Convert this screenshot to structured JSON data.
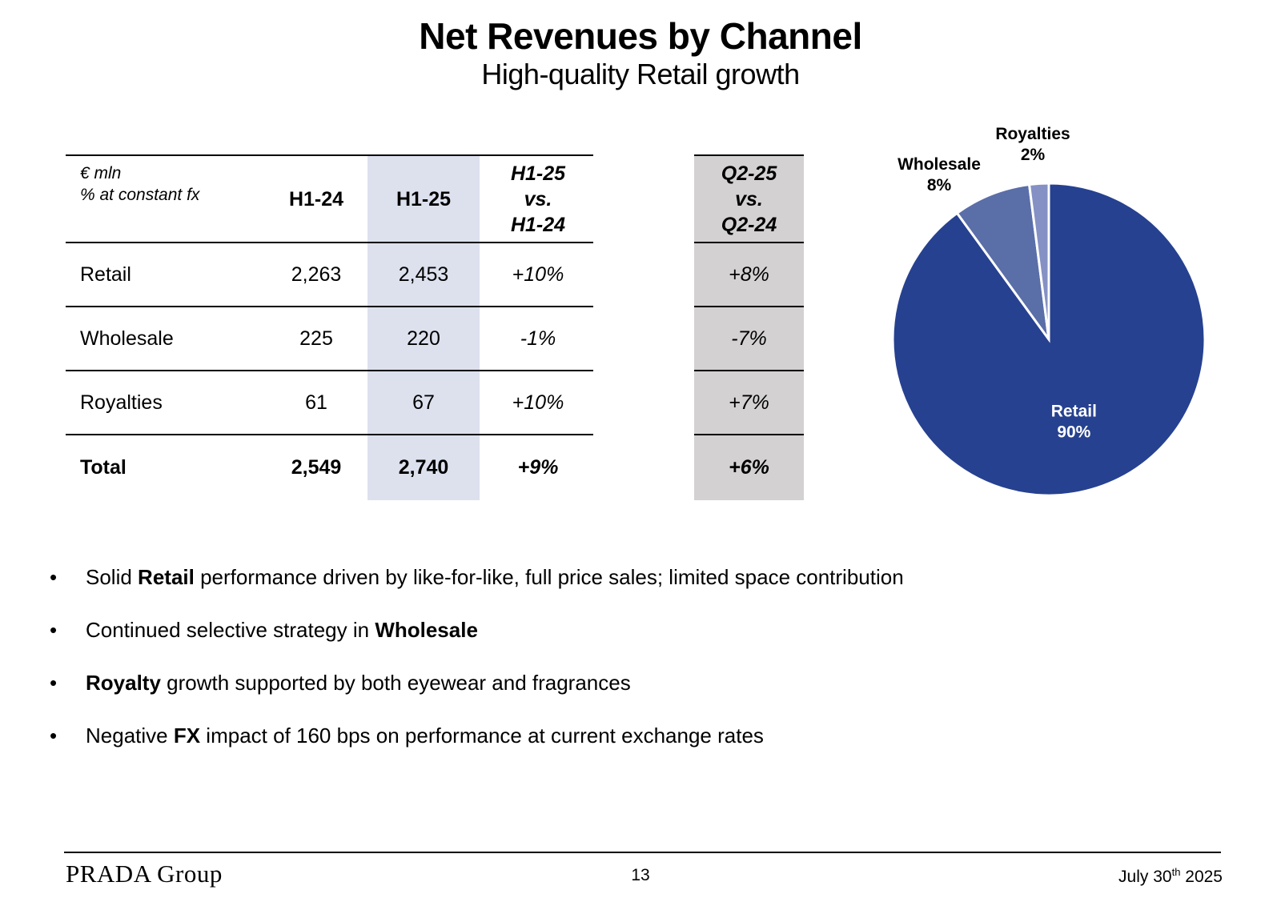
{
  "header": {
    "title": "Net Revenues by Channel",
    "subtitle": "High-quality Retail growth"
  },
  "table": {
    "units_line1": "€ mln",
    "units_line2": "% at constant fx",
    "col_h124": "H1-24",
    "col_h125": "H1-25",
    "col_change": [
      "H1-25",
      "vs.",
      "H1-24"
    ],
    "col_q2": [
      "Q2-25",
      "vs.",
      "Q2-24"
    ],
    "rows": [
      {
        "label": "Retail",
        "h124": "2,263",
        "h125": "2,453",
        "change": "+10%",
        "q2": "+8%"
      },
      {
        "label": "Wholesale",
        "h124": "225",
        "h125": "220",
        "change": "-1%",
        "q2": "-7%"
      },
      {
        "label": "Royalties",
        "h124": "61",
        "h125": "67",
        "change": "+10%",
        "q2": "+7%"
      },
      {
        "label": "Total",
        "h124": "2,549",
        "h125": "2,740",
        "change": "+9%",
        "q2": "+6%"
      }
    ]
  },
  "chart_data": {
    "type": "pie",
    "title": "",
    "slices": [
      {
        "label": "Retail",
        "value": 90,
        "display": "90%",
        "color": "#26418f"
      },
      {
        "label": "Wholesale",
        "value": 8,
        "display": "8%",
        "color": "#5a6ea8"
      },
      {
        "label": "Royalties",
        "value": 2,
        "display": "2%",
        "color": "#8591c4"
      }
    ]
  },
  "bullets": [
    {
      "pre": "Solid ",
      "bold": "Retail",
      "post": " performance driven by like-for-like, full price sales; limited space contribution"
    },
    {
      "pre": "Continued selective strategy in ",
      "bold": "Wholesale",
      "post": ""
    },
    {
      "pre": "",
      "bold": "Royalty",
      "post": " growth supported by both eyewear and fragrances"
    },
    {
      "pre": "Negative ",
      "bold": "FX",
      "post": " impact of 160 bps on performance at current exchange rates"
    }
  ],
  "bullet_symbol": "•",
  "footer": {
    "logo": "PRADA Group",
    "page": "13",
    "date_pre": "July 30",
    "date_sup": "th",
    "date_post": " 2025"
  }
}
